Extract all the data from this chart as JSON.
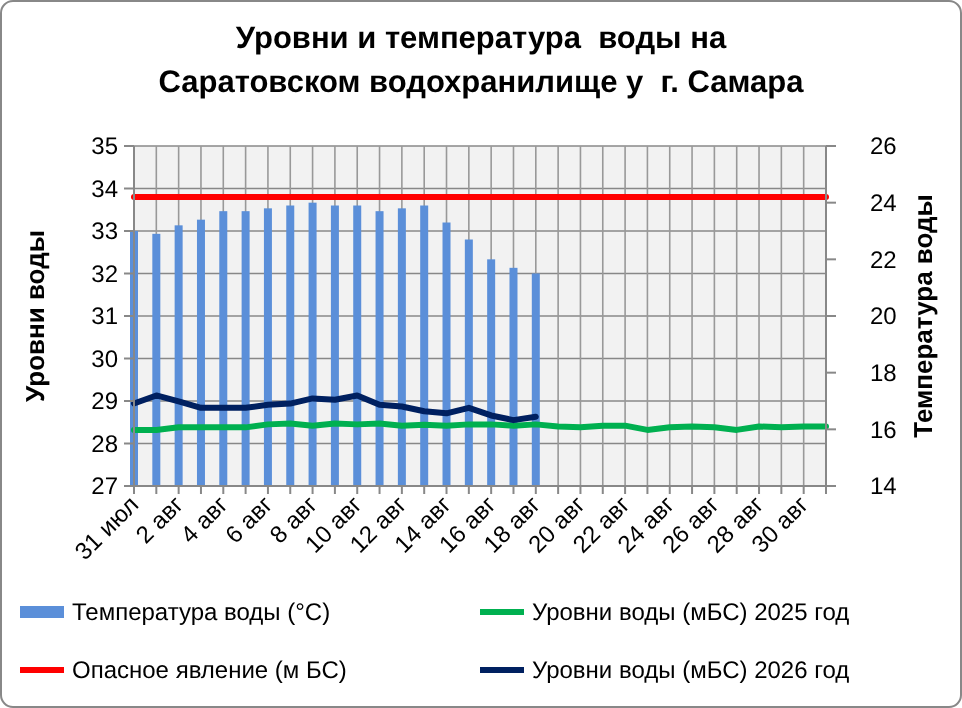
{
  "chart_data": {
    "type": "bar",
    "title": "Уровни и температура  воды на\nСаратовском водохранилище у  г. Самара",
    "ylabel": "Уровни воды",
    "y2label": "Температура воды",
    "categories": [
      "31 июл",
      null,
      "2 авг",
      null,
      "4 авг",
      null,
      "6 авг",
      null,
      "8 авг",
      null,
      "10 авг",
      null,
      "12 авг",
      null,
      "14 авг",
      null,
      "16 авг",
      null,
      "18 авг",
      null,
      "20 авг",
      null,
      "22 авг",
      null,
      "24 авг",
      null,
      "26 авг",
      null,
      "28 авг",
      null,
      "30 авг",
      null
    ],
    "series": [
      {
        "name": "Температура воды (°С)",
        "axis": "y2",
        "color": "#5b8fd9",
        "values": [
          23.0,
          22.9,
          23.2,
          23.4,
          23.7,
          23.7,
          23.8,
          23.9,
          24.0,
          23.9,
          23.9,
          23.7,
          23.8,
          23.9,
          23.3,
          22.7,
          22.0,
          21.7,
          21.5,
          null,
          null,
          null,
          null,
          null,
          null,
          null,
          null,
          null,
          null,
          null,
          null,
          null
        ]
      },
      {
        "name": "Уровни воды (мБС) 2025 год",
        "type": "line",
        "color": "#00b050",
        "values": [
          28.32,
          28.32,
          28.38,
          28.38,
          28.38,
          28.38,
          28.45,
          28.47,
          28.42,
          28.47,
          28.45,
          28.47,
          28.42,
          28.44,
          28.42,
          28.45,
          28.45,
          28.42,
          28.45,
          28.4,
          28.38,
          28.42,
          28.42,
          28.32,
          28.38,
          28.4,
          28.38,
          28.32,
          28.4,
          28.38,
          28.4,
          28.4
        ]
      },
      {
        "name": "Опасное явление (м БС)",
        "type": "line",
        "color": "#ff0000",
        "values": [
          33.8,
          33.8,
          33.8,
          33.8,
          33.8,
          33.8,
          33.8,
          33.8,
          33.8,
          33.8,
          33.8,
          33.8,
          33.8,
          33.8,
          33.8,
          33.8,
          33.8,
          33.8,
          33.8,
          33.8,
          33.8,
          33.8,
          33.8,
          33.8,
          33.8,
          33.8,
          33.8,
          33.8,
          33.8,
          33.8,
          33.8,
          33.8
        ]
      },
      {
        "name": "Уровни воды (мБС) 2026 год",
        "type": "line",
        "color": "#002060",
        "values": [
          28.94,
          29.13,
          28.99,
          28.84,
          28.84,
          28.84,
          28.91,
          28.94,
          29.06,
          29.03,
          29.13,
          28.91,
          28.87,
          28.76,
          28.71,
          28.84,
          28.66,
          28.55,
          28.63,
          null,
          null,
          null,
          null,
          null,
          null,
          null,
          null,
          null,
          null,
          null,
          null,
          null
        ]
      }
    ],
    "ylim": [
      27,
      35
    ],
    "yticks": [
      27,
      28,
      29,
      30,
      31,
      32,
      33,
      34,
      35
    ],
    "y2lim": [
      14,
      26
    ],
    "y2ticks": [
      14,
      16,
      18,
      20,
      22,
      24,
      26
    ],
    "grid": true,
    "legend": "bottom"
  }
}
